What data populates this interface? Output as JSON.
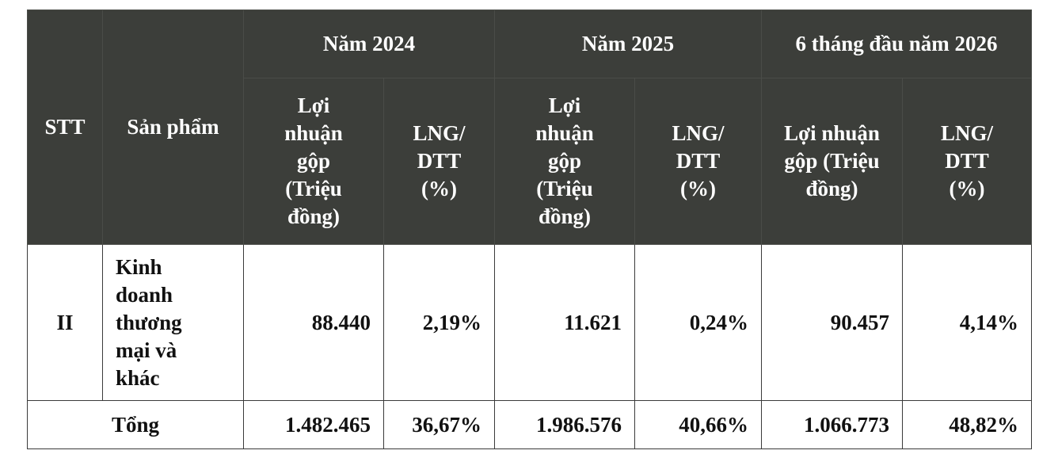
{
  "header": {
    "stt": "STT",
    "product": "Sản phẩm",
    "periods": [
      "Năm 2024",
      "Năm 2025",
      "6 tháng đầu năm 2026"
    ],
    "metric_profit": "Lợi nhuận gộp (Triệu đồng)",
    "metric_margin": "LNG/ DTT (%)"
  },
  "rows": [
    {
      "stt": "II",
      "product": "Kinh doanh thương mại và khác",
      "values": [
        "88.440",
        "2,19%",
        "11.621",
        "0,24%",
        "90.457",
        "4,14%"
      ]
    }
  ],
  "total": {
    "label": "Tổng",
    "values": [
      "1.482.465",
      "36,67%",
      "1.986.576",
      "40,66%",
      "1.066.773",
      "48,82%"
    ]
  }
}
